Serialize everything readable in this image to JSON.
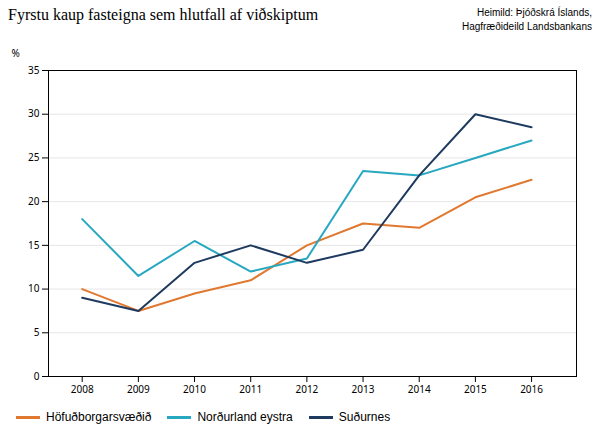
{
  "chart_data": {
    "type": "line",
    "title": "Fyrstu kaup fasteigna sem hlutfall af viðskiptum",
    "source": "Heimild: Þjóðskrá Íslands,\nHagfræðideild Landsbankans",
    "ylabel": "%",
    "x": [
      2008,
      2009,
      2010,
      2011,
      2012,
      2013,
      2014,
      2015,
      2016
    ],
    "series": [
      {
        "name": "Höfuðborgarsvæðið",
        "color": "#e07830",
        "values": [
          10.0,
          7.5,
          9.5,
          11.0,
          15.0,
          17.5,
          17.0,
          20.5,
          22.5
        ]
      },
      {
        "name": "Norðurland eystra",
        "color": "#28a8c0",
        "values": [
          18.0,
          11.5,
          15.5,
          12.0,
          13.5,
          23.5,
          23.0,
          25.0,
          27.0
        ]
      },
      {
        "name": "Suðurnes",
        "color": "#1e3a5f",
        "values": [
          9.0,
          7.5,
          13.0,
          15.0,
          13.0,
          14.5,
          23.0,
          30.0,
          28.5
        ]
      }
    ],
    "xlim": [
      2007.4,
      2016.8
    ],
    "xticks": [
      2008,
      2009,
      2010,
      2011,
      2012,
      2013,
      2014,
      2015,
      2016
    ],
    "ylim": [
      0,
      35
    ],
    "yticks": [
      0,
      5,
      10,
      15,
      20,
      25,
      30,
      35
    ],
    "grid": true,
    "legend": "bottom-left"
  }
}
